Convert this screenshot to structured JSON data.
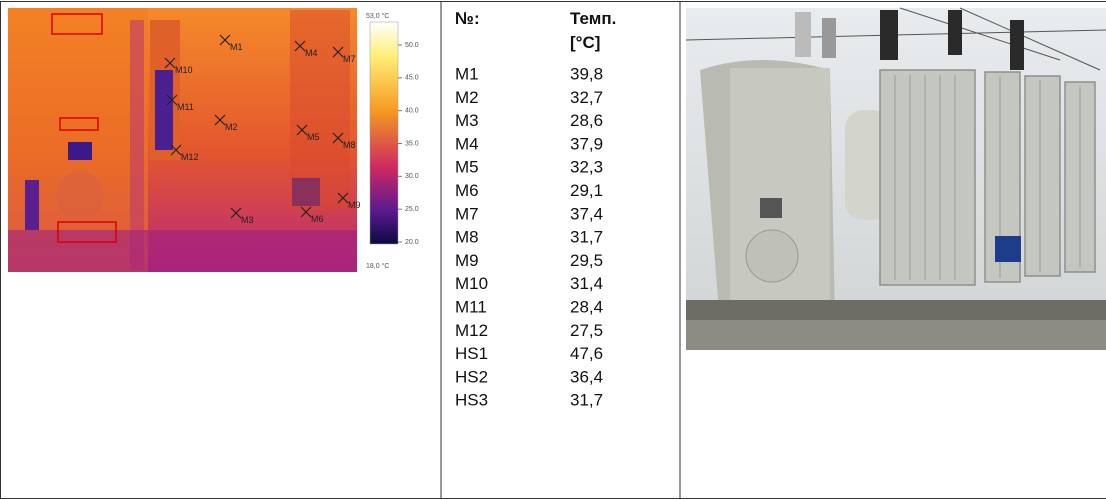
{
  "thermal_image": {
    "scale_max": "53,0 °C",
    "scale_ticks": [
      "50.0",
      "45.0",
      "40.0",
      "35.0",
      "30.0",
      "25.0",
      "20.0"
    ],
    "scale_min": "18,0 °C",
    "markers": [
      "M1",
      "M2",
      "M3",
      "M4",
      "M5",
      "M6",
      "M7",
      "M8",
      "M9",
      "M10",
      "M11",
      "M12"
    ]
  },
  "table": {
    "header": [
      "№:",
      "Темп.",
      "[°C]"
    ],
    "rows": [
      [
        "M1",
        "39,8"
      ],
      [
        "M2",
        "32,7"
      ],
      [
        "M3",
        "28,6"
      ],
      [
        "M4",
        "37,9"
      ],
      [
        "M5",
        "32,3"
      ],
      [
        "M6",
        "29,1"
      ],
      [
        "M7",
        "37,4"
      ],
      [
        "M8",
        "31,7"
      ],
      [
        "M9",
        "29,5"
      ],
      [
        "M10",
        "31,4"
      ],
      [
        "M11",
        "28,4"
      ],
      [
        "M12",
        "27,5"
      ],
      [
        "HS1",
        "47,6"
      ],
      [
        "HS2",
        "36,4"
      ],
      [
        "HS3",
        "31,7"
      ]
    ]
  }
}
